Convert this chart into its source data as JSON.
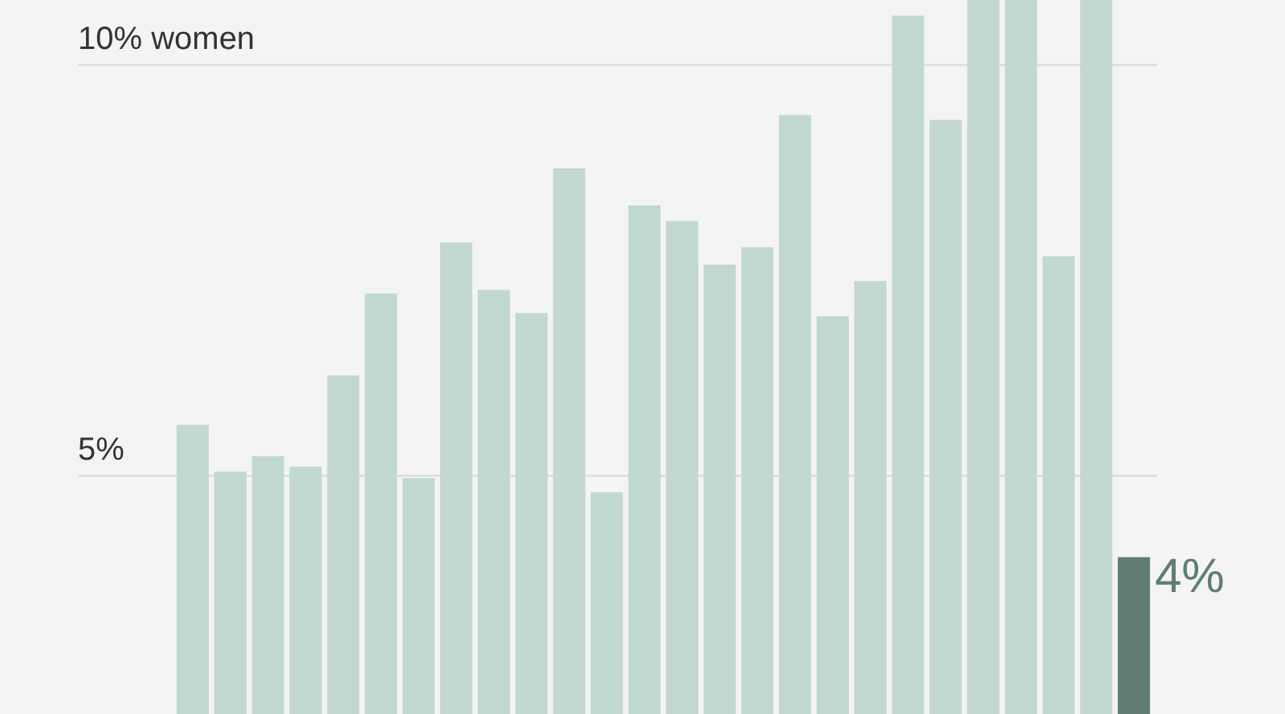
{
  "chart_data": {
    "type": "bar",
    "categories": [
      null,
      null,
      null,
      null,
      null,
      null,
      null,
      null,
      null,
      null,
      null,
      null,
      null,
      null,
      null,
      null,
      null,
      null,
      null,
      null,
      null,
      null,
      null,
      null,
      null,
      null
    ],
    "values": [
      5.61,
      5.04,
      5.23,
      5.1,
      6.21,
      7.21,
      4.96,
      7.83,
      7.25,
      6.97,
      8.73,
      4.79,
      8.28,
      8.09,
      7.56,
      7.77,
      9.38,
      6.93,
      7.36,
      10.59,
      9.32,
      10.78,
      10.78,
      7.66,
      10.78,
      4
    ],
    "colors": [
      "#c2d8d2",
      "#c2d8d2",
      "#c2d8d2",
      "#c2d8d2",
      "#c2d8d2",
      "#c2d8d2",
      "#c2d8d2",
      "#c2d8d2",
      "#c2d8d2",
      "#c2d8d2",
      "#c2d8d2",
      "#c2d8d2",
      "#c2d8d2",
      "#c2d8d2",
      "#c2d8d2",
      "#c2d8d2",
      "#c2d8d2",
      "#c2d8d2",
      "#c2d8d2",
      "#c2d8d2",
      "#c2d8d2",
      "#c2d8d2",
      "#c2d8d2",
      "#c2d8d2",
      "#c2d8d2",
      "#5f7d72"
    ],
    "value_labels": [
      null,
      null,
      null,
      null,
      null,
      null,
      null,
      null,
      null,
      null,
      null,
      null,
      null,
      null,
      null,
      null,
      null,
      null,
      null,
      null,
      null,
      null,
      null,
      null,
      null,
      "4%"
    ],
    "ylim": [
      2.09,
      10.78
    ],
    "yticks": [
      {
        "value": 5,
        "label": "5%"
      },
      {
        "value": 10,
        "label": "10% women"
      }
    ],
    "grid": "y"
  }
}
